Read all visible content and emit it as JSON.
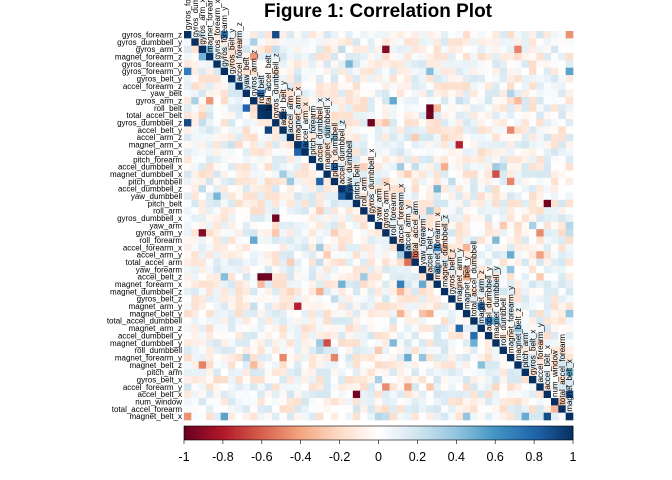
{
  "chart_data": {
    "type": "heatmap",
    "title": "Figure 1: Correlation Plot",
    "matrix_shape": "upper-triangle",
    "order": "hierarchical clustering",
    "variables": [
      "gyros_forearm_z",
      "gyros_dumbbell_y",
      "gyros_arm_x",
      "magnet_forearm_z",
      "gyros_forearm_x",
      "gyros_forearm_y",
      "gyros_belt_y",
      "accel_forearm_z",
      "yaw_belt",
      "gyros_arm_z",
      "roll_belt",
      "total_accel_belt",
      "gyros_dumbbell_z",
      "accel_belt_y",
      "accel_arm_z",
      "magnet_arm_x",
      "accel_arm_x",
      "pitch_forearm",
      "accel_dumbbell_x",
      "magnet_dumbbell_x",
      "pitch_dumbbell",
      "accel_dumbbell_z",
      "yaw_dumbbell",
      "pitch_belt",
      "roll_arm",
      "gyros_dumbbell_x",
      "yaw_arm",
      "gyros_arm_y",
      "roll_forearm",
      "accel_forearm_x",
      "accel_arm_y",
      "total_accel_arm",
      "yaw_forearm",
      "accel_belt_z",
      "magnet_forearm_x",
      "magnet_dumbbell_z",
      "gyros_belt_z",
      "magnet_arm_y",
      "magnet_belt_y",
      "total_accel_dumbbell",
      "magnet_arm_z",
      "accel_dumbbell_y",
      "magnet_dumbbell_y",
      "roll_dumbbell",
      "magnet_forearm_y",
      "magnet_belt_z",
      "pitch_arm",
      "gyros_belt_x",
      "accel_forearm_y",
      "accel_belt_x",
      "num_window",
      "total_accel_forearm",
      "magnet_belt_x"
    ],
    "column_labels": [
      "gyros_forearm_z",
      "gyros_dumbbell_y",
      "gyros_arm_x",
      "magnet_forearm_z",
      "gyros_forearm_x",
      "gyros_forearm_y",
      "gyros_belt_y",
      "accel_forearm_z",
      "yaw_belt",
      "gyros_arm_z",
      "roll_belt",
      "total_accel_belt",
      "gyros_dumbbell_z",
      "accel_belt_y",
      "accel_arm_z",
      "magnet_arm_x",
      "accel_arm_x",
      "pitch_forearm",
      "accel_dumbbell_x",
      "magnet_dumbbell_x",
      "pitch_dumbbell",
      "accel_dumbbell_z",
      "yaw_dumbbell",
      "pitch_belt",
      "roll_arm",
      "gyros_dumbbell_x",
      "yaw_arm",
      "gyros_arm_y",
      "roll_forearm",
      "accel_forearm_x",
      "accel_arm_y",
      "total_accel_arm",
      "yaw_forearm",
      "accel_belt_z",
      "magnet_forearm_x",
      "magnet_dumbbell_z",
      "gyros_belt_z",
      "magnet_arm_y",
      "magnet_belt_y",
      "total_accel_dumbbell",
      "magnet_arm_z",
      "accel_dumbbell_y",
      "magnet_dumbbell_y",
      "roll_dumbbell",
      "magnet_forearm_y",
      "magnet_belt_z",
      "pitch_arm",
      "gyros_belt_x",
      "accel_forearm_y",
      "accel_belt_x",
      "num_window",
      "total_accel_forearm",
      "magnet_belt_x"
    ],
    "notable_correlations": [
      {
        "a": "gyros_dumbbell_z",
        "b": "gyros_forearm_z",
        "r": 0.9
      },
      {
        "a": "roll_belt",
        "b": "yaw_belt",
        "r": 0.8
      },
      {
        "a": "total_accel_belt",
        "b": "roll_belt",
        "r": 0.98
      },
      {
        "a": "accel_belt_z",
        "b": "roll_belt",
        "r": -0.99
      },
      {
        "a": "accel_belt_z",
        "b": "total_accel_belt",
        "r": -0.97
      },
      {
        "a": "accel_belt_y",
        "b": "total_accel_belt",
        "r": 0.93
      },
      {
        "a": "accel_arm_x",
        "b": "magnet_arm_x",
        "r": 0.81
      },
      {
        "a": "pitch_belt",
        "b": "accel_belt_x",
        "r": -0.97
      },
      {
        "a": "magnet_belt_x",
        "b": "accel_belt_x",
        "r": 0.89
      },
      {
        "a": "accel_dumbbell_x",
        "b": "pitch_dumbbell",
        "r": 0.81
      },
      {
        "a": "accel_dumbbell_z",
        "b": "yaw_dumbbell",
        "r": 0.85
      },
      {
        "a": "gyros_arm_y",
        "b": "gyros_arm_x",
        "r": -0.92
      },
      {
        "a": "gyros_dumbbell_x",
        "b": "gyros_dumbbell_z",
        "r": -0.98
      },
      {
        "a": "magnet_arm_y",
        "b": "magnet_arm_z",
        "r": 0.79
      },
      {
        "a": "magnet_arm_x",
        "b": "magnet_arm_y",
        "r": -0.78
      },
      {
        "a": "total_accel_dumbbell",
        "b": "accel_dumbbell_y",
        "r": 0.77
      },
      {
        "a": "magnet_dumbbell_x",
        "b": "magnet_dumbbell_y",
        "r": -0.65
      },
      {
        "a": "gyros_forearm_y",
        "b": "gyros_forearm_z",
        "r": 0.7
      },
      {
        "a": "accel_arm_y",
        "b": "total_accel_arm",
        "r": -0.55
      },
      {
        "a": "accel_forearm_x",
        "b": "magnet_forearm_x",
        "r": 0.69
      }
    ],
    "colorbar": {
      "min": -1,
      "max": 1,
      "ticks": [
        "-1",
        "-0.8",
        "-0.6",
        "-0.4",
        "-0.2",
        "0",
        "0.2",
        "0.4",
        "0.6",
        "0.8",
        "1"
      ],
      "colors": [
        "#67001F",
        "#B2182B",
        "#D6604D",
        "#F4A582",
        "#FDDBC7",
        "#FFFFFF",
        "#D1E5F0",
        "#92C5DE",
        "#4393C3",
        "#2166AC",
        "#053061"
      ]
    },
    "legend_placement": "bottom",
    "grid": false
  }
}
